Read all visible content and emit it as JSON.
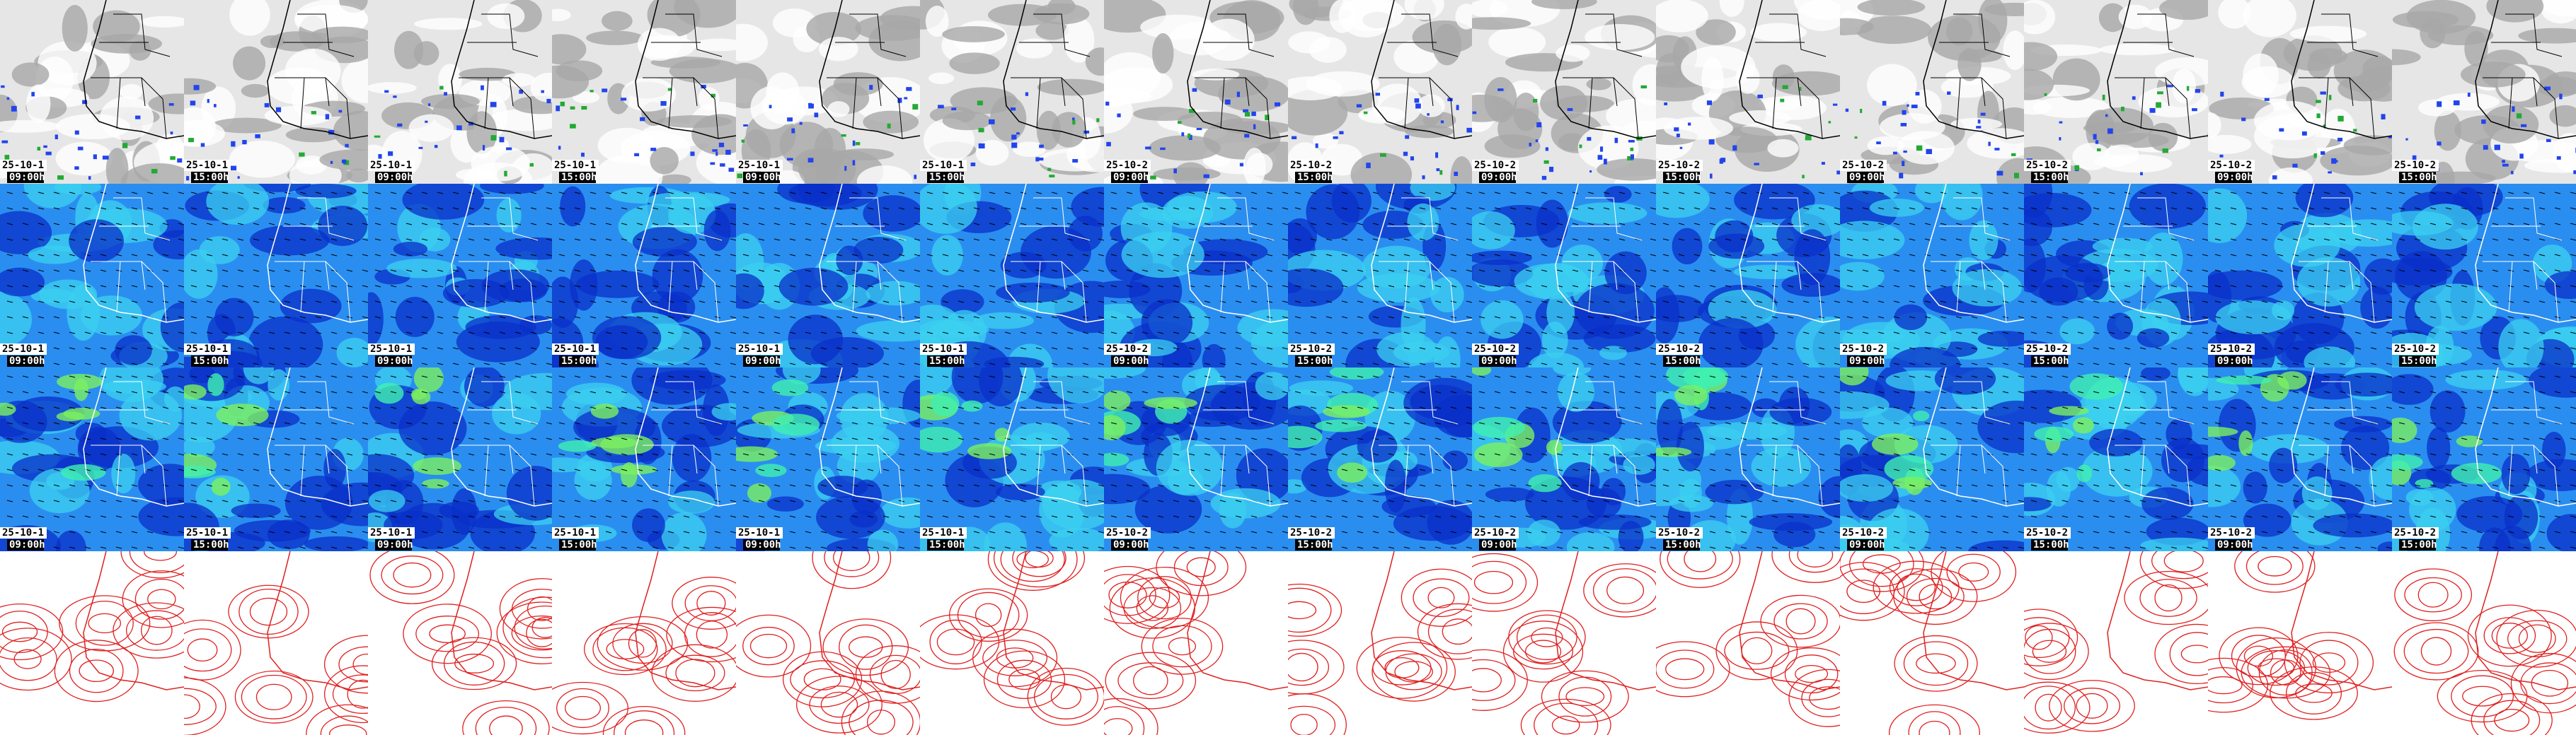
{
  "rows": [
    {
      "panels": [
        {
          "date": "25-10-1",
          "time": "09:00h"
        },
        {
          "date": "25-10-1",
          "time": "15:00h"
        },
        {
          "date": "25-10-1",
          "time": "09:00h"
        },
        {
          "date": "25-10-1",
          "time": "15:00h"
        },
        {
          "date": "25-10-1",
          "time": "09:00h"
        },
        {
          "date": "25-10-1",
          "time": "15:00h"
        },
        {
          "date": "25-10-2",
          "time": "09:00h"
        },
        {
          "date": "25-10-2",
          "time": "15:00h"
        },
        {
          "date": "25-10-2",
          "time": "09:00h"
        },
        {
          "date": "25-10-2",
          "time": "15:00h"
        },
        {
          "date": "25-10-2",
          "time": "09:00h"
        },
        {
          "date": "25-10-2",
          "time": "15:00h"
        },
        {
          "date": "25-10-2",
          "time": "09:00h"
        },
        {
          "date": "25-10-2",
          "time": "15:00h"
        }
      ]
    },
    {
      "panels": [
        {
          "date": "25-10-1",
          "time": "09:00h"
        },
        {
          "date": "25-10-1",
          "time": "15:00h"
        },
        {
          "date": "25-10-1",
          "time": "09:00h"
        },
        {
          "date": "25-10-1",
          "time": "15:00h"
        },
        {
          "date": "25-10-1",
          "time": "09:00h"
        },
        {
          "date": "25-10-1",
          "time": "15:00h"
        },
        {
          "date": "25-10-2",
          "time": "09:00h"
        },
        {
          "date": "25-10-2",
          "time": "15:00h"
        },
        {
          "date": "25-10-2",
          "time": "09:00h"
        },
        {
          "date": "25-10-2",
          "time": "15:00h"
        },
        {
          "date": "25-10-2",
          "time": "09:00h"
        },
        {
          "date": "25-10-2",
          "time": "15:00h"
        },
        {
          "date": "25-10-2",
          "time": "09:00h"
        },
        {
          "date": "25-10-2",
          "time": "15:00h"
        }
      ]
    },
    {
      "panels": [
        {
          "date": "25-10-1",
          "time": "09:00h"
        },
        {
          "date": "25-10-1",
          "time": "15:00h"
        },
        {
          "date": "25-10-1",
          "time": "09:00h"
        },
        {
          "date": "25-10-1",
          "time": "15:00h"
        },
        {
          "date": "25-10-1",
          "time": "09:00h"
        },
        {
          "date": "25-10-1",
          "time": "15:00h"
        },
        {
          "date": "25-10-2",
          "time": "09:00h"
        },
        {
          "date": "25-10-2",
          "time": "15:00h"
        },
        {
          "date": "25-10-2",
          "time": "09:00h"
        },
        {
          "date": "25-10-2",
          "time": "15:00h"
        },
        {
          "date": "25-10-2",
          "time": "09:00h"
        },
        {
          "date": "25-10-2",
          "time": "15:00h"
        },
        {
          "date": "25-10-2",
          "time": "09:00h"
        },
        {
          "date": "25-10-2",
          "time": "15:00h"
        }
      ]
    }
  ]
}
